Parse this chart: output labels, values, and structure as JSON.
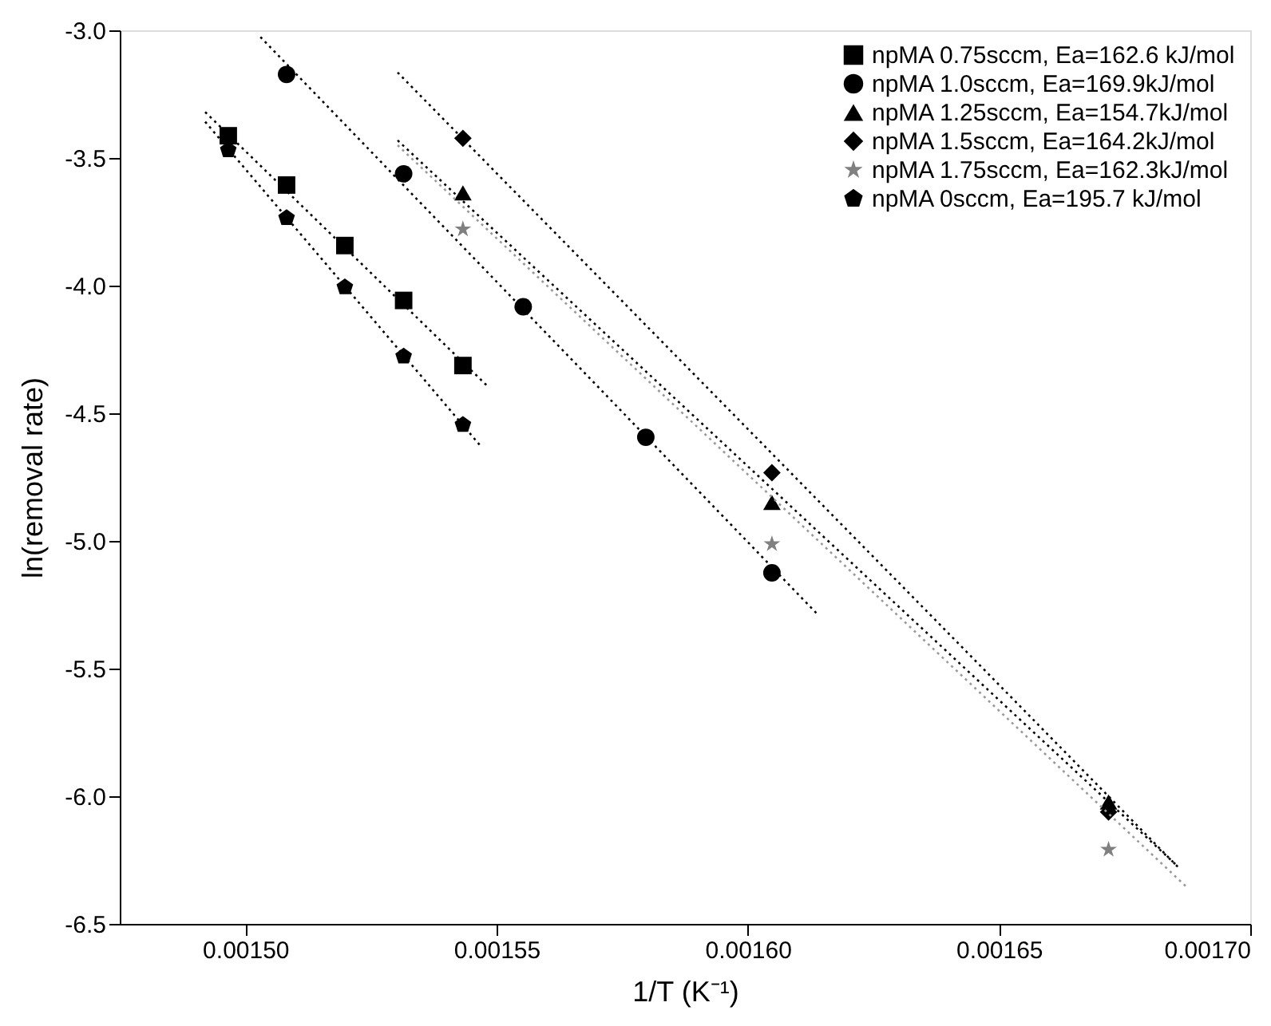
{
  "chart_data": {
    "type": "scatter",
    "xlabel": "1/T (K⁻¹)",
    "ylabel": "ln(removal rate)",
    "xlim": [
      0.001475,
      0.0017
    ],
    "xticks": [
      {
        "value": 0.0015,
        "label": "0.00150"
      },
      {
        "value": 0.00155,
        "label": "0.00155"
      },
      {
        "value": 0.0016,
        "label": "0.00160"
      },
      {
        "value": 0.00165,
        "label": "0.00165"
      },
      {
        "value": 0.0017,
        "label": "0.00170"
      }
    ],
    "ylim": [
      -6.5,
      -3.0
    ],
    "yticks": [
      {
        "value": -6.5,
        "label": "-6.5"
      },
      {
        "value": -6.0,
        "label": "-6.0"
      },
      {
        "value": -5.5,
        "label": "-5.5"
      },
      {
        "value": -5.0,
        "label": "-5.0"
      },
      {
        "value": -4.5,
        "label": "-4.5"
      },
      {
        "value": -4.0,
        "label": "-4.0"
      },
      {
        "value": -3.5,
        "label": "-3.5"
      },
      {
        "value": -3.0,
        "label": "-3.0"
      }
    ],
    "grid": false,
    "legend": "top right",
    "series": [
      {
        "name": "npMA 0.75sccm, Ea=162.6 kJ/mol",
        "type": "scatter",
        "marker": "square",
        "color": "#000000",
        "x": [
          0.0014966,
          0.0015082,
          0.0015198,
          0.0015315,
          0.0015433
        ],
        "values": [
          -3.413,
          -3.606,
          -3.843,
          -4.058,
          -4.313
        ]
      },
      {
        "name": "npMA 1.0sccm, Ea=169.9kJ/mol",
        "type": "scatter",
        "marker": "circle",
        "color": "#000000",
        "x": [
          0.0015082,
          0.0015315,
          0.0015553,
          0.0015797,
          0.0016048
        ],
        "values": [
          -3.173,
          -3.562,
          -4.083,
          -4.594,
          -5.125
        ]
      },
      {
        "name": "npMA 1.25sccm, Ea=154.7kJ/mol",
        "type": "scatter",
        "marker": "triangle",
        "color": "#000000",
        "x": [
          0.0015433,
          0.0016048,
          0.0016718
        ],
        "values": [
          -3.637,
          -4.849,
          -6.023
        ]
      },
      {
        "name": "npMA 1.5sccm, Ea=164.2kJ/mol",
        "type": "scatter",
        "marker": "diamond",
        "color": "#000000",
        "x": [
          0.0015433,
          0.0016048,
          0.0016718
        ],
        "values": [
          -3.423,
          -4.733,
          -6.062
        ]
      },
      {
        "name": "npMA 1.75sccm, Ea=162.3kJ/mol",
        "type": "scatter",
        "marker": "star",
        "color": "#808080",
        "x": [
          0.0015433,
          0.0016048,
          0.0016718
        ],
        "values": [
          -3.779,
          -5.012,
          -6.209
        ]
      },
      {
        "name": "npMA 0sccm, Ea=195.7 kJ/mol",
        "type": "scatter",
        "color": "#000000",
        "x": [
          0.0014966,
          0.0015082,
          0.0015198,
          0.0015315,
          0.0015433
        ],
        "values": [
          -3.469,
          -3.735,
          -4.006,
          -4.277,
          -4.545
        ]
      },
      {
        "type": "line",
        "line_style": "dotted",
        "color": "#000000",
        "x": [
          0.001492,
          0.001548
        ],
        "values": [
          -3.32,
          -4.39
        ]
      },
      {
        "type": "line",
        "line_style": "dotted",
        "color": "#000000",
        "x": [
          0.001492,
          0.0015469
        ],
        "values": [
          -3.358,
          -4.63
        ]
      },
      {
        "type": "line",
        "line_style": "dotted",
        "color": "#000000",
        "x": [
          0.001503,
          0.0016139
        ],
        "values": [
          -3.026,
          -5.288
        ]
      },
      {
        "type": "line",
        "line_style": "dotted",
        "color": "#000000",
        "x": [
          0.0015303,
          0.0016858
        ],
        "values": [
          -3.165,
          -6.281
        ]
      },
      {
        "type": "line",
        "line_style": "dotted",
        "color": "#000000",
        "x": [
          0.0015303,
          0.0016852
        ],
        "values": [
          -3.431,
          -6.268
        ]
      },
      {
        "type": "line",
        "line_style": "dotted",
        "color": "#999999",
        "x": [
          0.0015303,
          0.0016872
        ],
        "values": [
          -3.45,
          -6.353
        ]
      }
    ]
  }
}
